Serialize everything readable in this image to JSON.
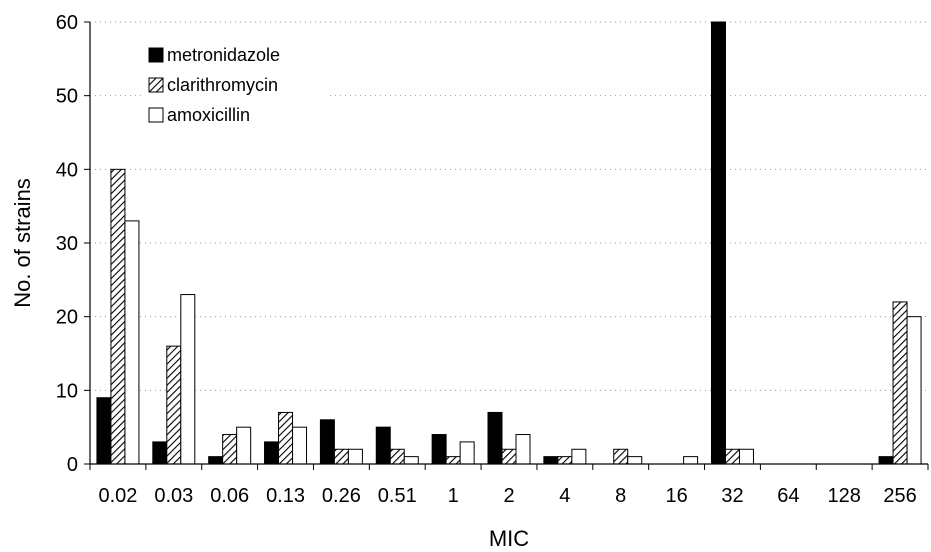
{
  "chart_data": {
    "type": "bar",
    "title": "",
    "xlabel": "MIC",
    "ylabel": "No. of strains",
    "ylim": [
      0,
      60
    ],
    "yticks": [
      0,
      10,
      20,
      30,
      40,
      50,
      60
    ],
    "grid": "horizontal dotted",
    "legend_position": "top-left",
    "categories": [
      "0.02",
      "0.03",
      "0.06",
      "0.13",
      "0.26",
      "0.51",
      "1",
      "2",
      "4",
      "8",
      "16",
      "32",
      "64",
      "128",
      "256"
    ],
    "series": [
      {
        "name": "metronidazole",
        "pattern": "solid-black",
        "values": [
          9,
          3,
          1,
          3,
          6,
          5,
          4,
          7,
          1,
          0,
          0,
          60,
          0,
          0,
          1
        ]
      },
      {
        "name": "clarithromycin",
        "pattern": "diagonal-hatch",
        "values": [
          40,
          16,
          4,
          7,
          2,
          2,
          1,
          2,
          1,
          2,
          0,
          2,
          0,
          0,
          22
        ]
      },
      {
        "name": "amoxicillin",
        "pattern": "white",
        "values": [
          33,
          23,
          5,
          5,
          2,
          1,
          3,
          4,
          2,
          1,
          1,
          2,
          0,
          0,
          20
        ]
      }
    ]
  }
}
